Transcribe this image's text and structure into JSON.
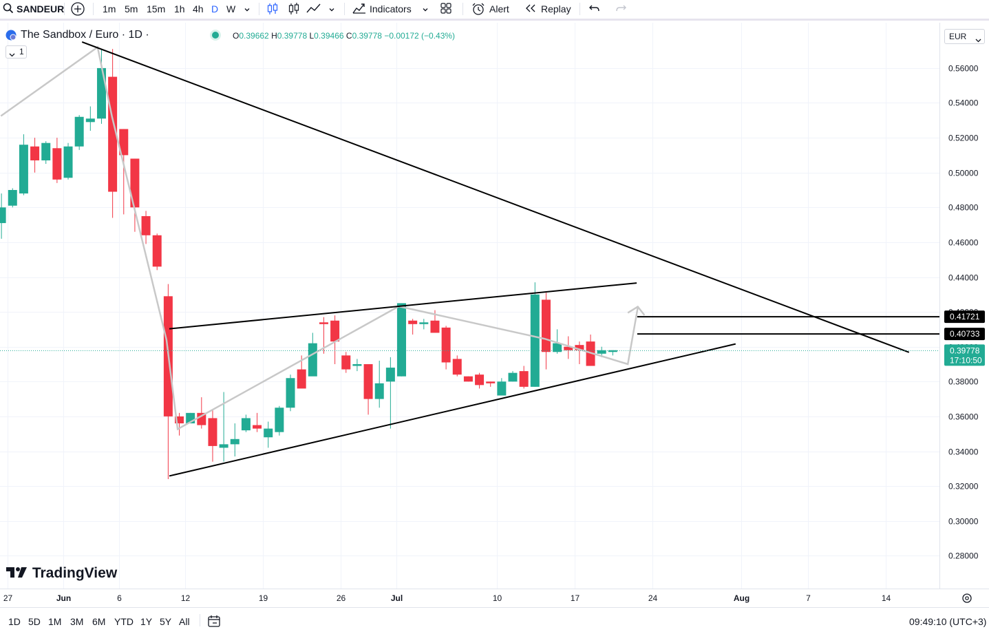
{
  "toolbar": {
    "symbol": "SANDEUR",
    "intervals": [
      "1m",
      "5m",
      "15m",
      "1h",
      "4h",
      "D",
      "W"
    ],
    "active_interval": "D",
    "indicators_label": "Indicators",
    "alert_label": "Alert",
    "replay_label": "Replay"
  },
  "legend": {
    "title": "The Sandbox / Euro · 1D ·",
    "o_key": "O",
    "o_val": "0.39662",
    "h_key": "H",
    "h_val": "0.39778",
    "l_key": "L",
    "l_val": "0.39466",
    "c_key": "C",
    "c_val": "0.39778",
    "change": "−0.00172 (−0.43%)",
    "indicator_count": "1"
  },
  "currency": "EUR",
  "price_labels": {
    "last_price": "0.39778",
    "countdown": "17:10:50",
    "level_1": "0.41721",
    "level_2": "0.40733"
  },
  "logo_text": "TradingView",
  "bottombar": {
    "ranges": [
      "1D",
      "5D",
      "1M",
      "3M",
      "6M",
      "YTD",
      "1Y",
      "5Y",
      "All"
    ],
    "clock": "09:49:10 (UTC+3)"
  },
  "colors": {
    "up": "#22ab94",
    "down": "#f23645",
    "trendline": "#000000",
    "path": "#c8c8c8",
    "accent": "#2962ff"
  },
  "chart_data": {
    "type": "candlestick",
    "ylim": [
      0.27,
      0.575
    ],
    "y_ticks": [
      "0.28000",
      "0.30000",
      "0.32000",
      "0.34000",
      "0.36000",
      "0.38000",
      "0.40000",
      "0.42000",
      "0.44000",
      "0.46000",
      "0.48000",
      "0.50000",
      "0.52000",
      "0.54000",
      "0.56000"
    ],
    "x_ticks": [
      {
        "label": "27",
        "day": 0
      },
      {
        "label": "Jun",
        "day": 5
      },
      {
        "label": "6",
        "day": 10
      },
      {
        "label": "12",
        "day": 16
      },
      {
        "label": "19",
        "day": 23
      },
      {
        "label": "26",
        "day": 30
      },
      {
        "label": "Jul",
        "day": 35
      },
      {
        "label": "10",
        "day": 44
      },
      {
        "label": "17",
        "day": 51
      },
      {
        "label": "24",
        "day": 58
      },
      {
        "label": "Aug",
        "day": 66
      },
      {
        "label": "7",
        "day": 72
      },
      {
        "label": "14",
        "day": 79
      }
    ],
    "candles": [
      [
        -0.55,
        0.471,
        0.48,
        0.462,
        0.488
      ],
      [
        0.45,
        0.481,
        0.49,
        0.48,
        0.491
      ],
      [
        1.45,
        0.488,
        0.516,
        0.487,
        0.522
      ],
      [
        2.45,
        0.515,
        0.507,
        0.5,
        0.52
      ],
      [
        3.45,
        0.507,
        0.517,
        0.505,
        0.518
      ],
      [
        4.45,
        0.514,
        0.496,
        0.494,
        0.52
      ],
      [
        5.45,
        0.497,
        0.515,
        0.496,
        0.517
      ],
      [
        6.45,
        0.515,
        0.532,
        0.513,
        0.533
      ],
      [
        7.45,
        0.529,
        0.531,
        0.524,
        0.538
      ],
      [
        8.45,
        0.531,
        0.56,
        0.528,
        0.571
      ],
      [
        9.45,
        0.555,
        0.489,
        0.474,
        0.571
      ],
      [
        10.45,
        0.525,
        0.51,
        0.476,
        0.525
      ],
      [
        11.45,
        0.508,
        0.48,
        0.466,
        0.508
      ],
      [
        12.45,
        0.475,
        0.464,
        0.459,
        0.478
      ],
      [
        13.45,
        0.464,
        0.446,
        0.444,
        0.465
      ],
      [
        14.45,
        0.429,
        0.36,
        0.324,
        0.436
      ],
      [
        15.45,
        0.36,
        0.356,
        0.349,
        0.362
      ],
      [
        16.45,
        0.356,
        0.362,
        0.356,
        0.362
      ],
      [
        17.45,
        0.362,
        0.355,
        0.353,
        0.371
      ],
      [
        18.45,
        0.359,
        0.343,
        0.334,
        0.364
      ],
      [
        19.45,
        0.342,
        0.344,
        0.334,
        0.374
      ],
      [
        20.45,
        0.344,
        0.347,
        0.337,
        0.356
      ],
      [
        21.45,
        0.352,
        0.359,
        0.351,
        0.361
      ],
      [
        22.45,
        0.355,
        0.353,
        0.351,
        0.362
      ],
      [
        23.45,
        0.348,
        0.353,
        0.342,
        0.357
      ],
      [
        24.45,
        0.351,
        0.365,
        0.349,
        0.366
      ],
      [
        25.45,
        0.365,
        0.382,
        0.363,
        0.384
      ],
      [
        26.45,
        0.387,
        0.376,
        0.377,
        0.395
      ],
      [
        27.45,
        0.383,
        0.402,
        0.384,
        0.408
      ],
      [
        28.45,
        0.414,
        0.413,
        0.396,
        0.417
      ],
      [
        29.45,
        0.415,
        0.403,
        0.39,
        0.418
      ],
      [
        30.45,
        0.395,
        0.387,
        0.385,
        0.397
      ],
      [
        31.45,
        0.389,
        0.39,
        0.386,
        0.393
      ],
      [
        32.45,
        0.39,
        0.37,
        0.361,
        0.39
      ],
      [
        33.45,
        0.37,
        0.379,
        0.365,
        0.392
      ],
      [
        34.45,
        0.38,
        0.388,
        0.353,
        0.394
      ],
      [
        35.45,
        0.383,
        0.425,
        0.383,
        0.425
      ],
      [
        36.45,
        0.415,
        0.413,
        0.407,
        0.416
      ],
      [
        37.45,
        0.413,
        0.414,
        0.41,
        0.416
      ],
      [
        38.45,
        0.415,
        0.408,
        0.409,
        0.421
      ],
      [
        39.45,
        0.411,
        0.391,
        0.387,
        0.412
      ],
      [
        40.45,
        0.393,
        0.384,
        0.383,
        0.395
      ],
      [
        41.45,
        0.383,
        0.38,
        0.38,
        0.383
      ],
      [
        42.45,
        0.384,
        0.378,
        0.376,
        0.385
      ],
      [
        43.45,
        0.38,
        0.379,
        0.377,
        0.38
      ],
      [
        44.45,
        0.372,
        0.38,
        0.372,
        0.382
      ],
      [
        45.45,
        0.38,
        0.385,
        0.38,
        0.386
      ],
      [
        46.45,
        0.386,
        0.377,
        0.376,
        0.389
      ],
      [
        47.45,
        0.377,
        0.43,
        0.377,
        0.437
      ],
      [
        48.45,
        0.427,
        0.397,
        0.387,
        0.431
      ],
      [
        49.45,
        0.397,
        0.402,
        0.396,
        0.41
      ],
      [
        50.45,
        0.4,
        0.398,
        0.393,
        0.406
      ],
      [
        51.45,
        0.401,
        0.398,
        0.39,
        0.403
      ],
      [
        52.45,
        0.403,
        0.389,
        0.389,
        0.407
      ],
      [
        53.45,
        0.396,
        0.398,
        0.394,
        0.4
      ],
      [
        54.45,
        0.397,
        0.398,
        0.395,
        0.398
      ]
    ]
  },
  "drawings": {
    "trendlines": [
      [
        [
          6.7,
          0.575
        ],
        [
          81.1,
          0.3968
        ]
      ],
      [
        [
          14.55,
          0.3258
        ],
        [
          65.5,
          0.4016
        ]
      ],
      [
        [
          14.55,
          0.4103
        ],
        [
          56.6,
          0.4366
        ]
      ]
    ],
    "path": [
      [
        -0.6,
        0.5325
      ],
      [
        8.1,
        0.572
      ],
      [
        9.4,
        0.532
      ],
      [
        14.3,
        0.404
      ],
      [
        15.3,
        0.3527
      ],
      [
        35.2,
        0.4232
      ],
      [
        48.3,
        0.4046
      ],
      [
        55.8,
        0.39
      ],
      [
        56.7,
        0.4225
      ]
    ],
    "arrow_head": [
      [
        55.8,
        0.4195
      ],
      [
        56.7,
        0.423
      ],
      [
        57.3,
        0.4181
      ]
    ],
    "levels": [
      {
        "value": 0.41721,
        "from_day": 56.65
      },
      {
        "value": 0.40733,
        "from_day": 56.65
      }
    ],
    "last_price_value": 0.39778
  }
}
